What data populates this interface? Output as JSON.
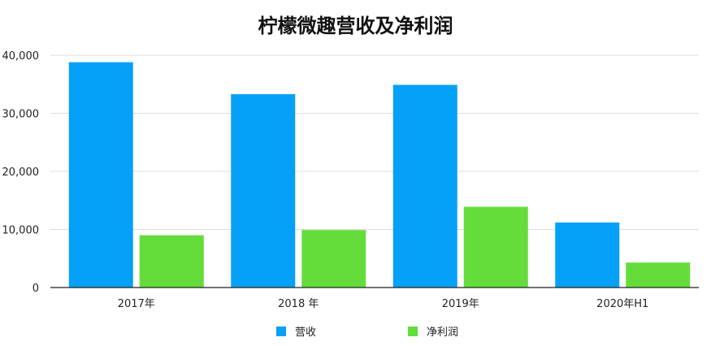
{
  "chart_data": {
    "type": "bar",
    "title": "柠檬微趣营收及净利润",
    "categories": [
      "2017年",
      "2018 年",
      "2019年",
      "2020年H1"
    ],
    "series": [
      {
        "name": "营收",
        "color": "#05a0f7",
        "values": [
          38800,
          33300,
          34900,
          11200
        ]
      },
      {
        "name": "净利润",
        "color": "#64dd3b",
        "values": [
          9000,
          9900,
          13900,
          4300
        ]
      }
    ],
    "ylim": [
      0,
      40000
    ],
    "yticks": [
      "0",
      "10,000",
      "20,000",
      "30,000",
      "40,000"
    ],
    "grid": true,
    "legend": "bottom"
  }
}
